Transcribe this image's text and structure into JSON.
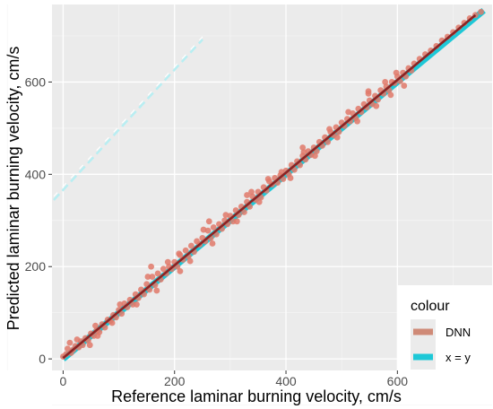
{
  "chart_data": {
    "type": "scatter",
    "xlabel": "Reference laminar burning velocity, cm/s",
    "ylabel": "Predicted laminar burning velocity, cm/s",
    "xlim": [
      -20,
      770
    ],
    "ylim": [
      -25,
      768
    ],
    "x_ticks": [
      "0",
      "200",
      "400",
      "600"
    ],
    "y_ticks": [
      "0",
      "200",
      "400",
      "600"
    ],
    "grid": true,
    "legend": {
      "title": "colour",
      "placement": "bottom-right",
      "entries": [
        {
          "label": "DNN",
          "color": "#cf8a77"
        },
        {
          "label": "x = y",
          "color": "#1ec8d7"
        }
      ]
    },
    "series": [
      {
        "name": "DNN",
        "color": "#e0796a",
        "points": [
          [
            0,
            5
          ],
          [
            5,
            10
          ],
          [
            8,
            22
          ],
          [
            14,
            13
          ],
          [
            18,
            20
          ],
          [
            22,
            28
          ],
          [
            28,
            25
          ],
          [
            32,
            38
          ],
          [
            35,
            30
          ],
          [
            40,
            45
          ],
          [
            45,
            40
          ],
          [
            50,
            55
          ],
          [
            55,
            50
          ],
          [
            60,
            62
          ],
          [
            65,
            58
          ],
          [
            70,
            75
          ],
          [
            75,
            68
          ],
          [
            80,
            85
          ],
          [
            85,
            82
          ],
          [
            90,
            95
          ],
          [
            95,
            90
          ],
          [
            100,
            106
          ],
          [
            105,
            98
          ],
          [
            110,
            120
          ],
          [
            115,
            112
          ],
          [
            120,
            128
          ],
          [
            125,
            118
          ],
          [
            130,
            140
          ],
          [
            135,
            132
          ],
          [
            140,
            150
          ],
          [
            145,
            140
          ],
          [
            150,
            162
          ],
          [
            155,
            150
          ],
          [
            160,
            178
          ],
          [
            165,
            160
          ],
          [
            170,
            185
          ],
          [
            175,
            172
          ],
          [
            180,
            195
          ],
          [
            185,
            185
          ],
          [
            190,
            200
          ],
          [
            195,
            195
          ],
          [
            200,
            210
          ],
          [
            205,
            200
          ],
          [
            210,
            225
          ],
          [
            215,
            215
          ],
          [
            220,
            235
          ],
          [
            225,
            222
          ],
          [
            230,
            245
          ],
          [
            235,
            232
          ],
          [
            240,
            255
          ],
          [
            245,
            248
          ],
          [
            250,
            262
          ],
          [
            255,
            255
          ],
          [
            260,
            278
          ],
          [
            265,
            262
          ],
          [
            270,
            285
          ],
          [
            275,
            270
          ],
          [
            280,
            292
          ],
          [
            285,
            282
          ],
          [
            290,
            300
          ],
          [
            295,
            292
          ],
          [
            300,
            310
          ],
          [
            305,
            298
          ],
          [
            310,
            322
          ],
          [
            315,
            312
          ],
          [
            320,
            330
          ],
          [
            325,
            318
          ],
          [
            330,
            340
          ],
          [
            335,
            330
          ],
          [
            340,
            352
          ],
          [
            345,
            345
          ],
          [
            350,
            362
          ],
          [
            355,
            350
          ],
          [
            360,
            372
          ],
          [
            365,
            365
          ],
          [
            370,
            385
          ],
          [
            375,
            378
          ],
          [
            380,
            392
          ],
          [
            385,
            382
          ],
          [
            390,
            398
          ],
          [
            395,
            390
          ],
          [
            400,
            408
          ],
          [
            405,
            400
          ],
          [
            410,
            420
          ],
          [
            415,
            410
          ],
          [
            420,
            428
          ],
          [
            425,
            420
          ],
          [
            430,
            440
          ],
          [
            435,
            432
          ],
          [
            440,
            450
          ],
          [
            445,
            442
          ],
          [
            450,
            458
          ],
          [
            455,
            450
          ],
          [
            460,
            470
          ],
          [
            465,
            462
          ],
          [
            470,
            480
          ],
          [
            475,
            470
          ],
          [
            480,
            492
          ],
          [
            485,
            485
          ],
          [
            490,
            502
          ],
          [
            495,
            492
          ],
          [
            500,
            512
          ],
          [
            505,
            505
          ],
          [
            510,
            520
          ],
          [
            515,
            515
          ],
          [
            520,
            532
          ],
          [
            525,
            522
          ],
          [
            530,
            542
          ],
          [
            535,
            535
          ],
          [
            540,
            552
          ],
          [
            545,
            545
          ],
          [
            550,
            560
          ],
          [
            555,
            552
          ],
          [
            560,
            570
          ],
          [
            565,
            562
          ],
          [
            570,
            582
          ],
          [
            575,
            575
          ],
          [
            580,
            590
          ],
          [
            585,
            582
          ],
          [
            590,
            600
          ],
          [
            595,
            598
          ],
          [
            600,
            612
          ],
          [
            605,
            602
          ],
          [
            610,
            620
          ],
          [
            615,
            612
          ],
          [
            620,
            630
          ],
          [
            625,
            625
          ],
          [
            630,
            640
          ],
          [
            640,
            650
          ],
          [
            650,
            660
          ],
          [
            660,
            668
          ],
          [
            670,
            678
          ],
          [
            680,
            690
          ],
          [
            690,
            698
          ],
          [
            700,
            708
          ],
          [
            710,
            718
          ],
          [
            720,
            728
          ],
          [
            730,
            738
          ],
          [
            740,
            745
          ],
          [
            750,
            752
          ],
          [
            25,
            42
          ],
          [
            58,
            72
          ],
          [
            88,
            78
          ],
          [
            102,
            118
          ],
          [
            132,
            118
          ],
          [
            152,
            178
          ],
          [
            168,
            148
          ],
          [
            188,
            210
          ],
          [
            208,
            228
          ],
          [
            228,
            212
          ],
          [
            252,
            280
          ],
          [
            268,
            250
          ],
          [
            292,
            312
          ],
          [
            312,
            298
          ],
          [
            338,
            362
          ],
          [
            352,
            340
          ],
          [
            368,
            390
          ],
          [
            392,
            405
          ],
          [
            408,
            392
          ],
          [
            432,
            448
          ],
          [
            452,
            440
          ],
          [
            478,
            498
          ],
          [
            492,
            480
          ],
          [
            512,
            535
          ],
          [
            528,
            515
          ],
          [
            548,
            575
          ],
          [
            562,
            548
          ],
          [
            578,
            600
          ],
          [
            588,
            572
          ],
          [
            598,
            620
          ],
          [
            612,
            592
          ],
          [
            548,
            580
          ],
          [
            430,
            458
          ],
          [
            262,
            298
          ],
          [
            158,
            200
          ],
          [
            62,
            50
          ],
          [
            12,
            35
          ],
          [
            48,
            30
          ],
          [
            210,
            190
          ],
          [
            330,
            355
          ]
        ]
      },
      {
        "name": "x = y",
        "color": "#1ec8d7",
        "points": [
          [
            0,
            0
          ],
          [
            755,
            755
          ]
        ]
      }
    ],
    "fit_line": {
      "color": "#8b2323",
      "points": [
        [
          0,
          2
        ],
        [
          740,
          745
        ]
      ]
    }
  }
}
